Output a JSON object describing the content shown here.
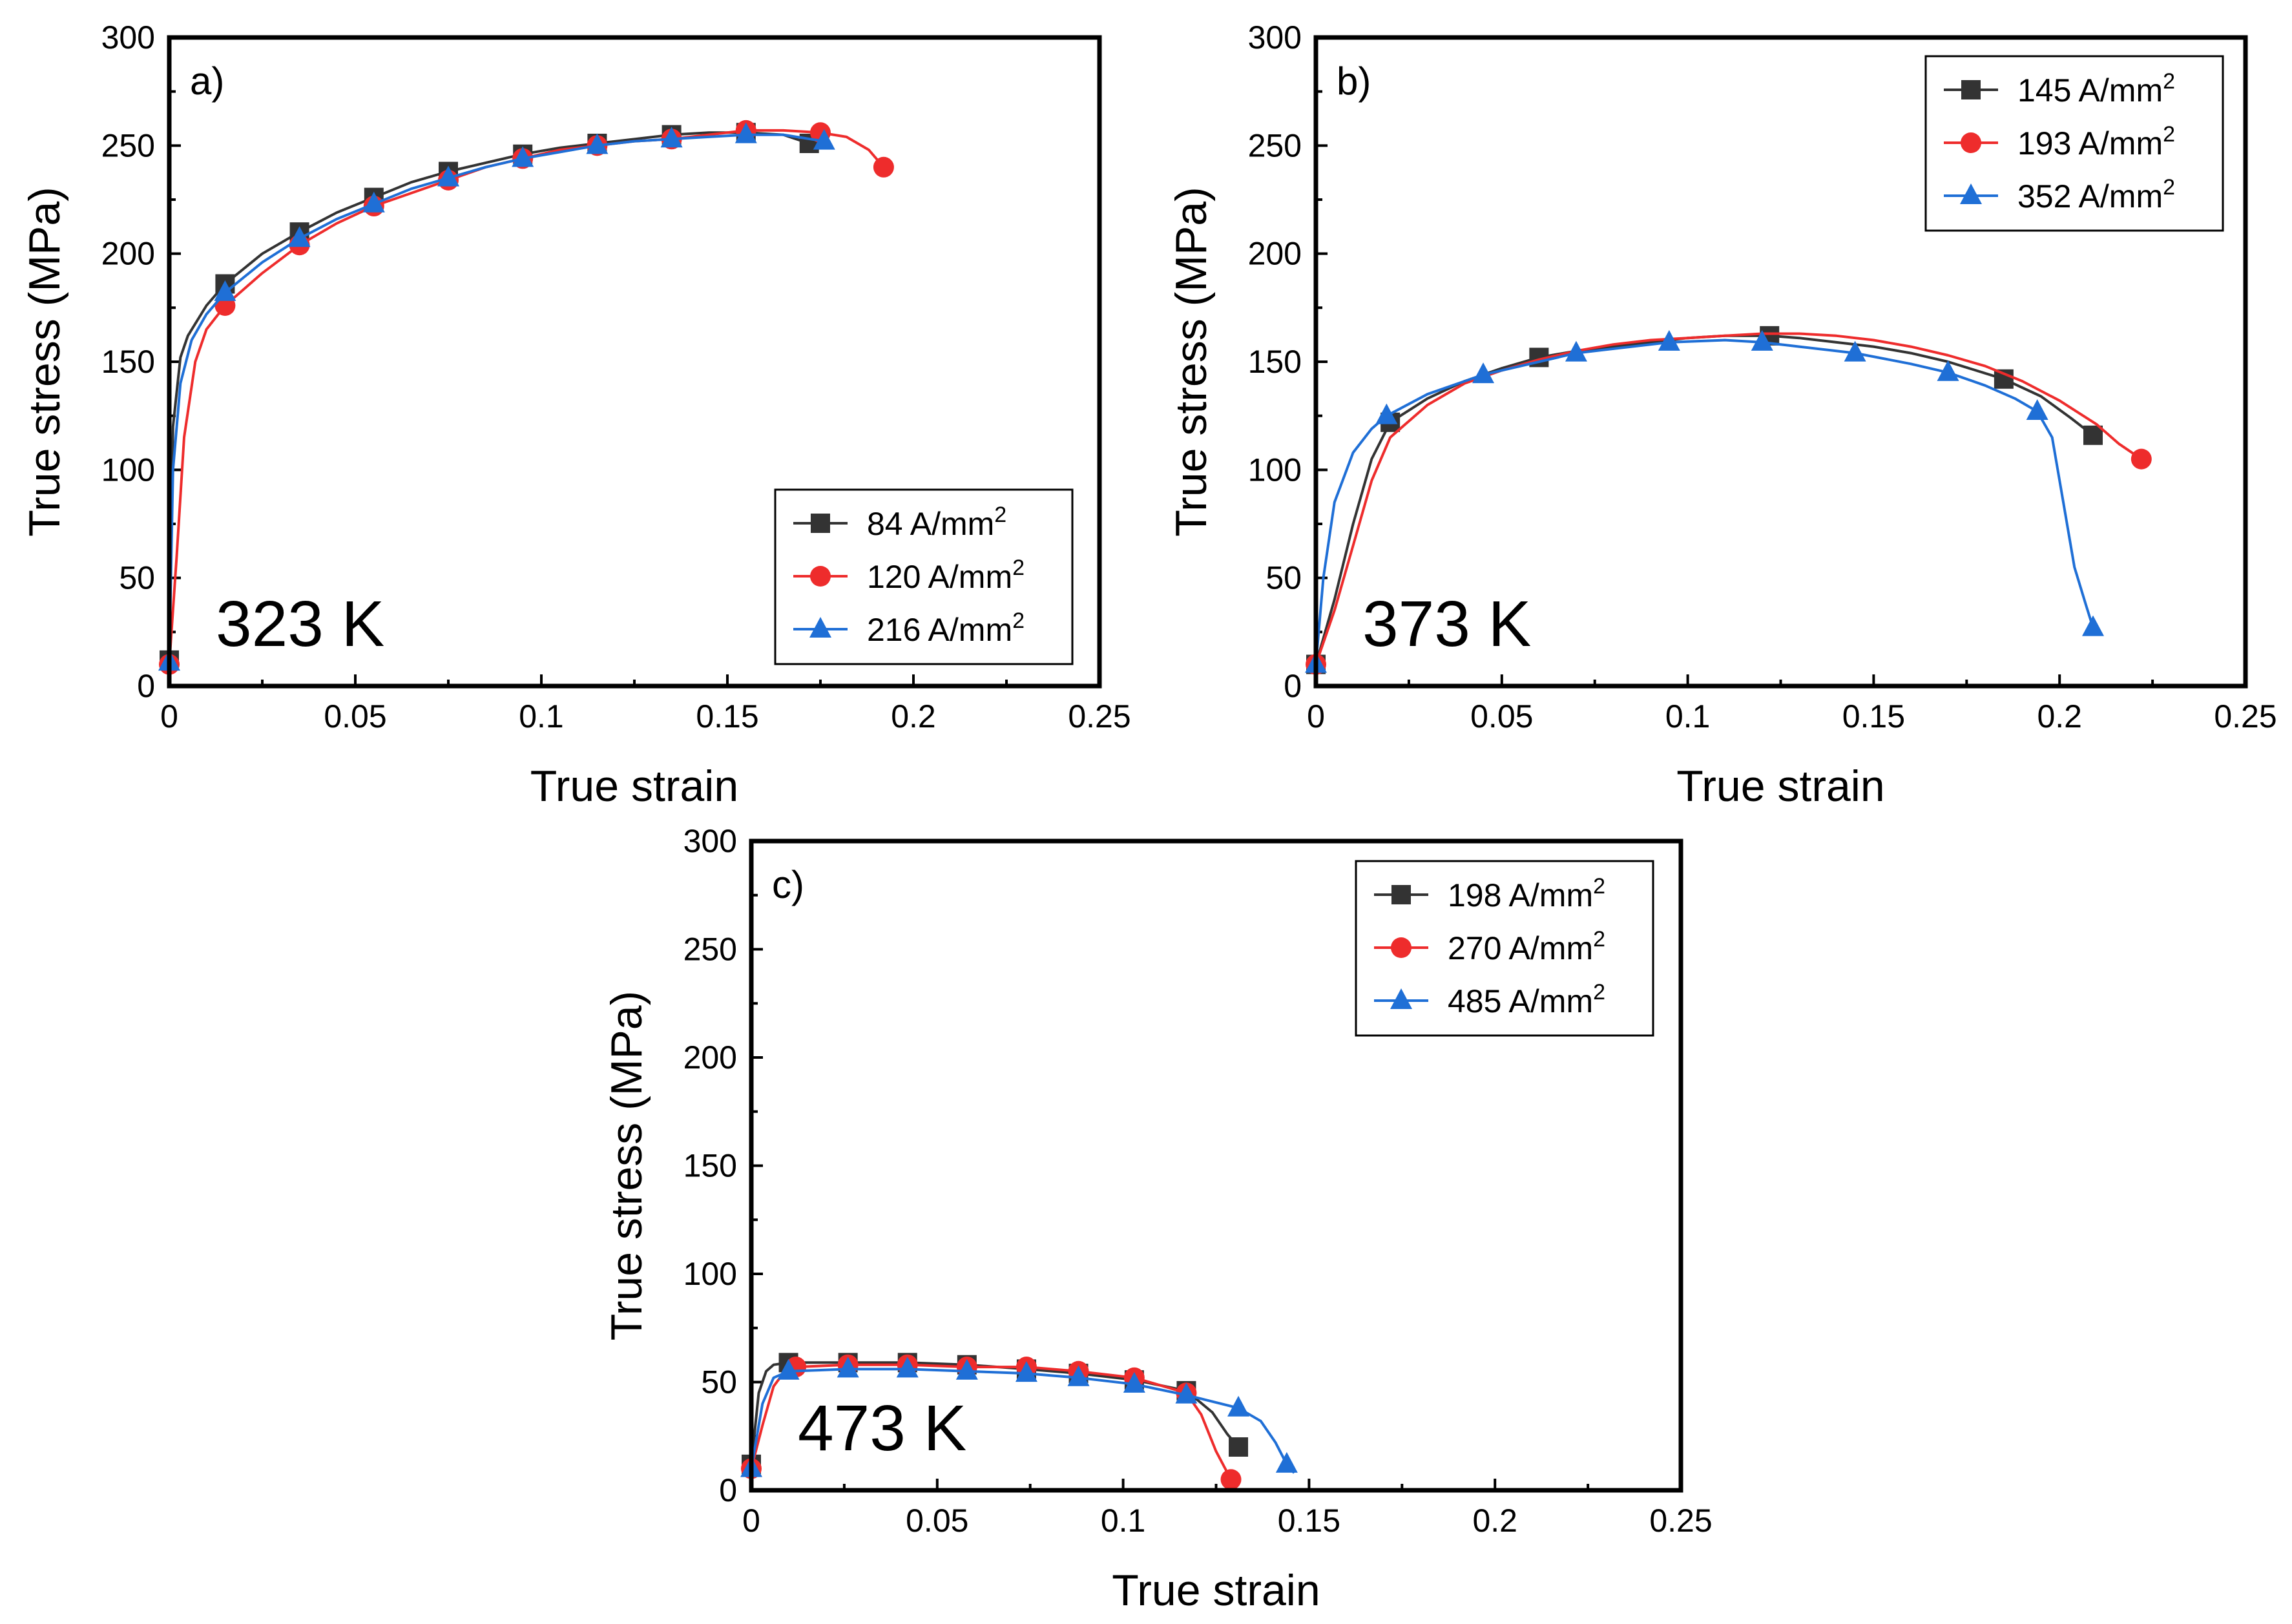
{
  "chart_data": [
    {
      "type": "line",
      "panel_label": "a)",
      "temperature_label": "323 K",
      "xlabel": "True strain",
      "ylabel": "True stress (MPa)",
      "xlim": [
        0,
        0.25
      ],
      "ylim": [
        0,
        300
      ],
      "xticks": [
        0,
        0.05,
        0.1,
        0.15,
        0.2,
        0.25
      ],
      "xtick_labels": [
        "0",
        "0.05",
        "0.1",
        "0.15",
        "0.2",
        "0.25"
      ],
      "yticks": [
        0,
        50,
        100,
        150,
        200,
        250,
        300
      ],
      "ytick_labels": [
        "0",
        "50",
        "100",
        "150",
        "200",
        "250",
        "300"
      ],
      "legend_position": "bottom-right",
      "series": [
        {
          "name": "84 A/mm",
          "name_sup": "2",
          "color": "#333333",
          "marker": "square",
          "x": [
            0,
            0.001,
            0.003,
            0.005,
            0.01,
            0.015,
            0.025,
            0.035,
            0.045,
            0.055,
            0.065,
            0.075,
            0.085,
            0.095,
            0.105,
            0.115,
            0.125,
            0.135,
            0.145,
            0.155,
            0.165,
            0.172
          ],
          "y": [
            12,
            120,
            152,
            162,
            176,
            186,
            200,
            210,
            219,
            226,
            233,
            238,
            242,
            246,
            249,
            251,
            253,
            255,
            256,
            256,
            255,
            251
          ],
          "marker_idx": [
            0,
            5,
            7,
            9,
            11,
            13,
            15,
            17,
            19,
            21
          ]
        },
        {
          "name": "120 A/mm",
          "name_sup": "2",
          "color": "#ee2c2c",
          "marker": "circle",
          "x": [
            0,
            0.002,
            0.004,
            0.007,
            0.01,
            0.015,
            0.025,
            0.035,
            0.045,
            0.055,
            0.065,
            0.075,
            0.085,
            0.095,
            0.105,
            0.115,
            0.125,
            0.135,
            0.145,
            0.155,
            0.165,
            0.175,
            0.182,
            0.188,
            0.192
          ],
          "y": [
            10,
            60,
            115,
            150,
            165,
            176,
            191,
            204,
            214,
            222,
            228,
            234,
            240,
            244,
            248,
            250,
            252,
            253,
            255,
            257,
            257,
            256,
            254,
            248,
            240
          ],
          "marker_idx": [
            0,
            5,
            7,
            9,
            11,
            13,
            15,
            17,
            19,
            21,
            24
          ]
        },
        {
          "name": "216 A/mm",
          "name_sup": "2",
          "color": "#1f6fd6",
          "marker": "triangle",
          "x": [
            0,
            0.001,
            0.003,
            0.006,
            0.01,
            0.015,
            0.025,
            0.035,
            0.045,
            0.055,
            0.065,
            0.075,
            0.085,
            0.095,
            0.105,
            0.115,
            0.125,
            0.135,
            0.145,
            0.155,
            0.165,
            0.176
          ],
          "y": [
            11,
            100,
            140,
            160,
            172,
            182,
            196,
            207,
            216,
            223,
            230,
            235,
            240,
            244,
            247,
            250,
            252,
            253,
            254,
            255,
            255,
            252
          ],
          "marker_idx": [
            0,
            5,
            7,
            9,
            11,
            13,
            15,
            17,
            19,
            21
          ]
        }
      ]
    },
    {
      "type": "line",
      "panel_label": "b)",
      "temperature_label": "373 K",
      "xlabel": "True strain",
      "ylabel": "True stress (MPa)",
      "xlim": [
        0,
        0.25
      ],
      "ylim": [
        0,
        300
      ],
      "xticks": [
        0,
        0.05,
        0.1,
        0.15,
        0.2,
        0.25
      ],
      "xtick_labels": [
        "0",
        "0.05",
        "0.1",
        "0.15",
        "0.2",
        "0.25"
      ],
      "yticks": [
        0,
        50,
        100,
        150,
        200,
        250,
        300
      ],
      "ytick_labels": [
        "0",
        "50",
        "100",
        "150",
        "200",
        "250",
        "300"
      ],
      "legend_position": "top-right",
      "series": [
        {
          "name": "145 A/mm",
          "name_sup": "2",
          "color": "#333333",
          "marker": "square",
          "x": [
            0,
            0.005,
            0.01,
            0.015,
            0.02,
            0.03,
            0.04,
            0.05,
            0.06,
            0.07,
            0.08,
            0.09,
            0.1,
            0.11,
            0.122,
            0.13,
            0.14,
            0.15,
            0.16,
            0.17,
            0.185,
            0.195,
            0.203,
            0.209
          ],
          "y": [
            10,
            40,
            75,
            105,
            122,
            133,
            141,
            147,
            152,
            155,
            157,
            159,
            161,
            162,
            162,
            161,
            159,
            157,
            154,
            150,
            142,
            134,
            124,
            116
          ],
          "marker_idx": [
            0,
            4,
            8,
            14,
            20,
            23
          ]
        },
        {
          "name": "193 A/mm",
          "name_sup": "2",
          "color": "#ee2c2c",
          "marker": "circle",
          "x": [
            0,
            0.005,
            0.01,
            0.015,
            0.02,
            0.03,
            0.04,
            0.05,
            0.06,
            0.07,
            0.08,
            0.09,
            0.1,
            0.11,
            0.12,
            0.13,
            0.14,
            0.15,
            0.16,
            0.17,
            0.18,
            0.19,
            0.2,
            0.21,
            0.216,
            0.222
          ],
          "y": [
            10,
            35,
            65,
            95,
            115,
            130,
            140,
            146,
            151,
            155,
            158,
            160,
            161,
            162,
            163,
            163,
            162,
            160,
            157,
            153,
            148,
            141,
            132,
            121,
            112,
            105
          ],
          "marker_idx": [
            0,
            25
          ]
        },
        {
          "name": "352 A/mm",
          "name_sup": "2",
          "color": "#1f6fd6",
          "marker": "triangle",
          "x": [
            0,
            0.002,
            0.005,
            0.01,
            0.015,
            0.019,
            0.03,
            0.045,
            0.06,
            0.07,
            0.08,
            0.095,
            0.11,
            0.12,
            0.13,
            0.145,
            0.16,
            0.17,
            0.18,
            0.188,
            0.194,
            0.198,
            0.201,
            0.204,
            0.207,
            0.209
          ],
          "y": [
            10,
            50,
            85,
            108,
            119,
            125,
            135,
            144,
            150,
            154,
            156,
            159,
            160,
            159,
            157,
            154,
            149,
            145,
            139,
            133,
            127,
            115,
            85,
            55,
            38,
            27
          ],
          "marker_idx": [
            0,
            5,
            7,
            9,
            11,
            13,
            15,
            17,
            20,
            25
          ]
        }
      ]
    },
    {
      "type": "line",
      "panel_label": "c)",
      "temperature_label": "473 K",
      "xlabel": "True strain",
      "ylabel": "True stress (MPa)",
      "xlim": [
        0,
        0.25
      ],
      "ylim": [
        0,
        300
      ],
      "xticks": [
        0,
        0.05,
        0.1,
        0.15,
        0.2,
        0.25
      ],
      "xtick_labels": [
        "0",
        "0.05",
        "0.1",
        "0.15",
        "0.2",
        "0.25"
      ],
      "yticks": [
        0,
        50,
        100,
        150,
        200,
        250,
        300
      ],
      "ytick_labels": [
        "0",
        "50",
        "100",
        "150",
        "200",
        "250",
        "300"
      ],
      "legend_position": "top-right",
      "series": [
        {
          "name": "198 A/mm",
          "name_sup": "2",
          "color": "#333333",
          "marker": "square",
          "x": [
            0,
            0.002,
            0.004,
            0.006,
            0.01,
            0.026,
            0.042,
            0.058,
            0.074,
            0.088,
            0.103,
            0.117,
            0.124,
            0.128,
            0.131
          ],
          "y": [
            12,
            45,
            55,
            58,
            59,
            59,
            59,
            58,
            56,
            54,
            51,
            46,
            36,
            26,
            20
          ],
          "marker_idx": [
            0,
            4,
            5,
            6,
            7,
            8,
            9,
            10,
            11,
            14
          ]
        },
        {
          "name": "270 A/mm",
          "name_sup": "2",
          "color": "#ee2c2c",
          "marker": "circle",
          "x": [
            0,
            0.003,
            0.006,
            0.009,
            0.012,
            0.026,
            0.042,
            0.058,
            0.074,
            0.088,
            0.103,
            0.117,
            0.121,
            0.125,
            0.129
          ],
          "y": [
            10,
            30,
            48,
            55,
            57,
            58,
            58,
            57,
            57,
            55,
            52,
            45,
            35,
            18,
            5
          ],
          "marker_idx": [
            0,
            4,
            5,
            6,
            7,
            8,
            9,
            10,
            11,
            14
          ]
        },
        {
          "name": "485 A/mm",
          "name_sup": "2",
          "color": "#1f6fd6",
          "marker": "triangle",
          "x": [
            0,
            0.003,
            0.006,
            0.01,
            0.026,
            0.042,
            0.058,
            0.074,
            0.088,
            0.103,
            0.117,
            0.131,
            0.137,
            0.141,
            0.144,
            0.146
          ],
          "y": [
            10,
            40,
            52,
            55,
            56,
            56,
            55,
            54,
            52,
            49,
            44,
            38,
            32,
            22,
            12,
            8
          ],
          "marker_idx": [
            0,
            3,
            4,
            5,
            6,
            7,
            8,
            9,
            10,
            11,
            14
          ]
        }
      ]
    }
  ]
}
